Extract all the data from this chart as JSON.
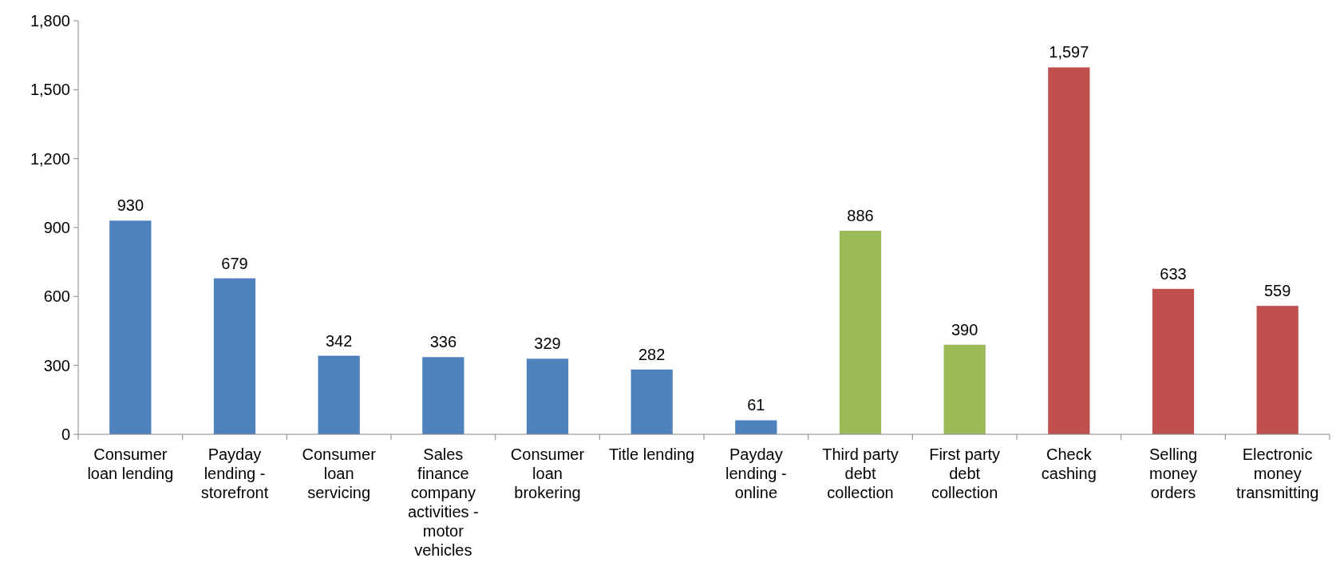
{
  "chart_data": {
    "type": "bar",
    "categories": [
      "Consumer loan lending",
      "Payday lending - storefront",
      "Consumer loan servicing",
      "Sales finance company activities - motor vehicles",
      "Consumer loan brokering",
      "Title lending",
      "Payday lending - online",
      "Third party debt collection",
      "First party debt collection",
      "Check cashing",
      "Selling money orders",
      "Electronic money transmitting"
    ],
    "values": [
      930,
      679,
      342,
      336,
      329,
      282,
      61,
      886,
      390,
      1597,
      633,
      559
    ],
    "colors": [
      "#4f81bd",
      "#4f81bd",
      "#4f81bd",
      "#4f81bd",
      "#4f81bd",
      "#4f81bd",
      "#4f81bd",
      "#9bbb59",
      "#9bbb59",
      "#c0504d",
      "#c0504d",
      "#c0504d"
    ],
    "value_labels": [
      "930",
      "679",
      "342",
      "336",
      "329",
      "282",
      "61",
      "886",
      "390",
      "1,597",
      "633",
      "559"
    ],
    "ylim": [
      0,
      1800
    ],
    "yticks": [
      0,
      300,
      600,
      900,
      {
        "value": 1200,
        "label": "1,200"
      },
      {
        "value": 1500,
        "label": "1,500"
      },
      {
        "value": 1800,
        "label": "1,800"
      }
    ],
    "grid": false
  }
}
